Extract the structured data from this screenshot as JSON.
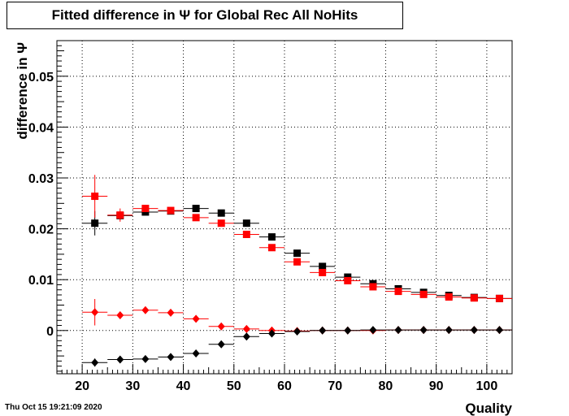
{
  "title": "Fitted difference in  Ψ  for Global Rec All NoHits",
  "timestamp": "Thu Oct 15 19:21:09 2020",
  "chart_data": {
    "type": "scatter",
    "title": "Fitted difference in  Ψ  for Global Rec All NoHits",
    "xlabel": "Quality",
    "ylabel": "difference in  Ψ",
    "xlim": [
      15,
      105
    ],
    "ylim": [
      -0.0085,
      0.057
    ],
    "x_ticks": [
      20,
      30,
      40,
      50,
      60,
      70,
      80,
      90,
      100
    ],
    "y_ticks": [
      0,
      0.01,
      0.02,
      0.03,
      0.04,
      0.05
    ],
    "y_tick_labels": [
      "0",
      "0.01",
      "0.02",
      "0.03",
      "0.04",
      "0.05"
    ],
    "grid": true,
    "x_bin_half_width": 2.5,
    "series": [
      {
        "marker": "square",
        "color": "#000000",
        "x": [
          22.5,
          27.5,
          32.5,
          37.5,
          42.5,
          47.5,
          52.5,
          57.5,
          62.5,
          67.5,
          72.5,
          77.5,
          82.5,
          87.5,
          92.5,
          97.5,
          102.5
        ],
        "y": [
          0.0211,
          0.0226,
          0.0233,
          0.0235,
          0.024,
          0.0231,
          0.0211,
          0.0184,
          0.0152,
          0.0126,
          0.0105,
          0.0092,
          0.0082,
          0.0075,
          0.0069,
          0.0065,
          0.0063
        ],
        "yerr": [
          0.0024,
          0.0008,
          0.0005,
          0.0004,
          0.0003,
          0.0003,
          0.0002,
          0.0002,
          0.0002,
          0.0002,
          0.0001,
          0.0001,
          0.0001,
          0.0001,
          0.0001,
          0.0001,
          0.0001
        ]
      },
      {
        "marker": "square",
        "color": "#ff0000",
        "x": [
          22.5,
          27.5,
          32.5,
          37.5,
          42.5,
          47.5,
          52.5,
          57.5,
          62.5,
          67.5,
          72.5,
          77.5,
          82.5,
          87.5,
          92.5,
          97.5,
          102.5
        ],
        "y": [
          0.0264,
          0.0227,
          0.024,
          0.0236,
          0.0222,
          0.0211,
          0.0189,
          0.0163,
          0.0135,
          0.0114,
          0.0098,
          0.0086,
          0.0077,
          0.0071,
          0.0066,
          0.0064,
          0.0063
        ],
        "yerr": [
          0.0042,
          0.0013,
          0.0007,
          0.0005,
          0.0004,
          0.0003,
          0.0002,
          0.0002,
          0.0002,
          0.0002,
          0.0001,
          0.0001,
          0.0001,
          0.0001,
          0.0001,
          0.0001,
          0.0001
        ]
      },
      {
        "marker": "diamond",
        "color": "#ff0000",
        "x": [
          22.5,
          27.5,
          32.5,
          37.5,
          42.5,
          47.5,
          52.5,
          57.5,
          62.5,
          67.5,
          72.5,
          77.5,
          82.5,
          87.5,
          92.5,
          97.5,
          102.5
        ],
        "y": [
          0.0036,
          0.003,
          0.004,
          0.0035,
          0.0023,
          0.0008,
          0.0003,
          0.0,
          -0.0001,
          0.0,
          0.0,
          0.0,
          0.0001,
          0.0001,
          0.0001,
          0.0001,
          0.0001
        ],
        "yerr": [
          0.0026,
          0.0007,
          0.0004,
          0.0003,
          0.0002,
          0.0002,
          0.0001,
          0.0001,
          0.0001,
          0.0001,
          0.0001,
          0.0001,
          0.0001,
          0.0001,
          0.0001,
          0.0001,
          0.0001
        ]
      },
      {
        "marker": "diamond",
        "color": "#000000",
        "x": [
          22.5,
          27.5,
          32.5,
          37.5,
          42.5,
          47.5,
          52.5,
          57.5,
          62.5,
          67.5,
          72.5,
          77.5,
          82.5,
          87.5,
          92.5,
          97.5,
          102.5
        ],
        "y": [
          -0.0063,
          -0.0057,
          -0.0056,
          -0.0052,
          -0.0045,
          -0.0027,
          -0.0012,
          -0.0006,
          -0.0002,
          0.0,
          0.0,
          0.0001,
          0.0001,
          0.0001,
          0.0001,
          0.0001,
          0.0001
        ],
        "yerr": [
          0.0008,
          0.0004,
          0.0003,
          0.0002,
          0.0002,
          0.0002,
          0.0001,
          0.0001,
          0.0001,
          0.0001,
          0.0001,
          0.0001,
          0.0001,
          0.0001,
          0.0001,
          0.0001,
          0.0001
        ]
      }
    ]
  }
}
